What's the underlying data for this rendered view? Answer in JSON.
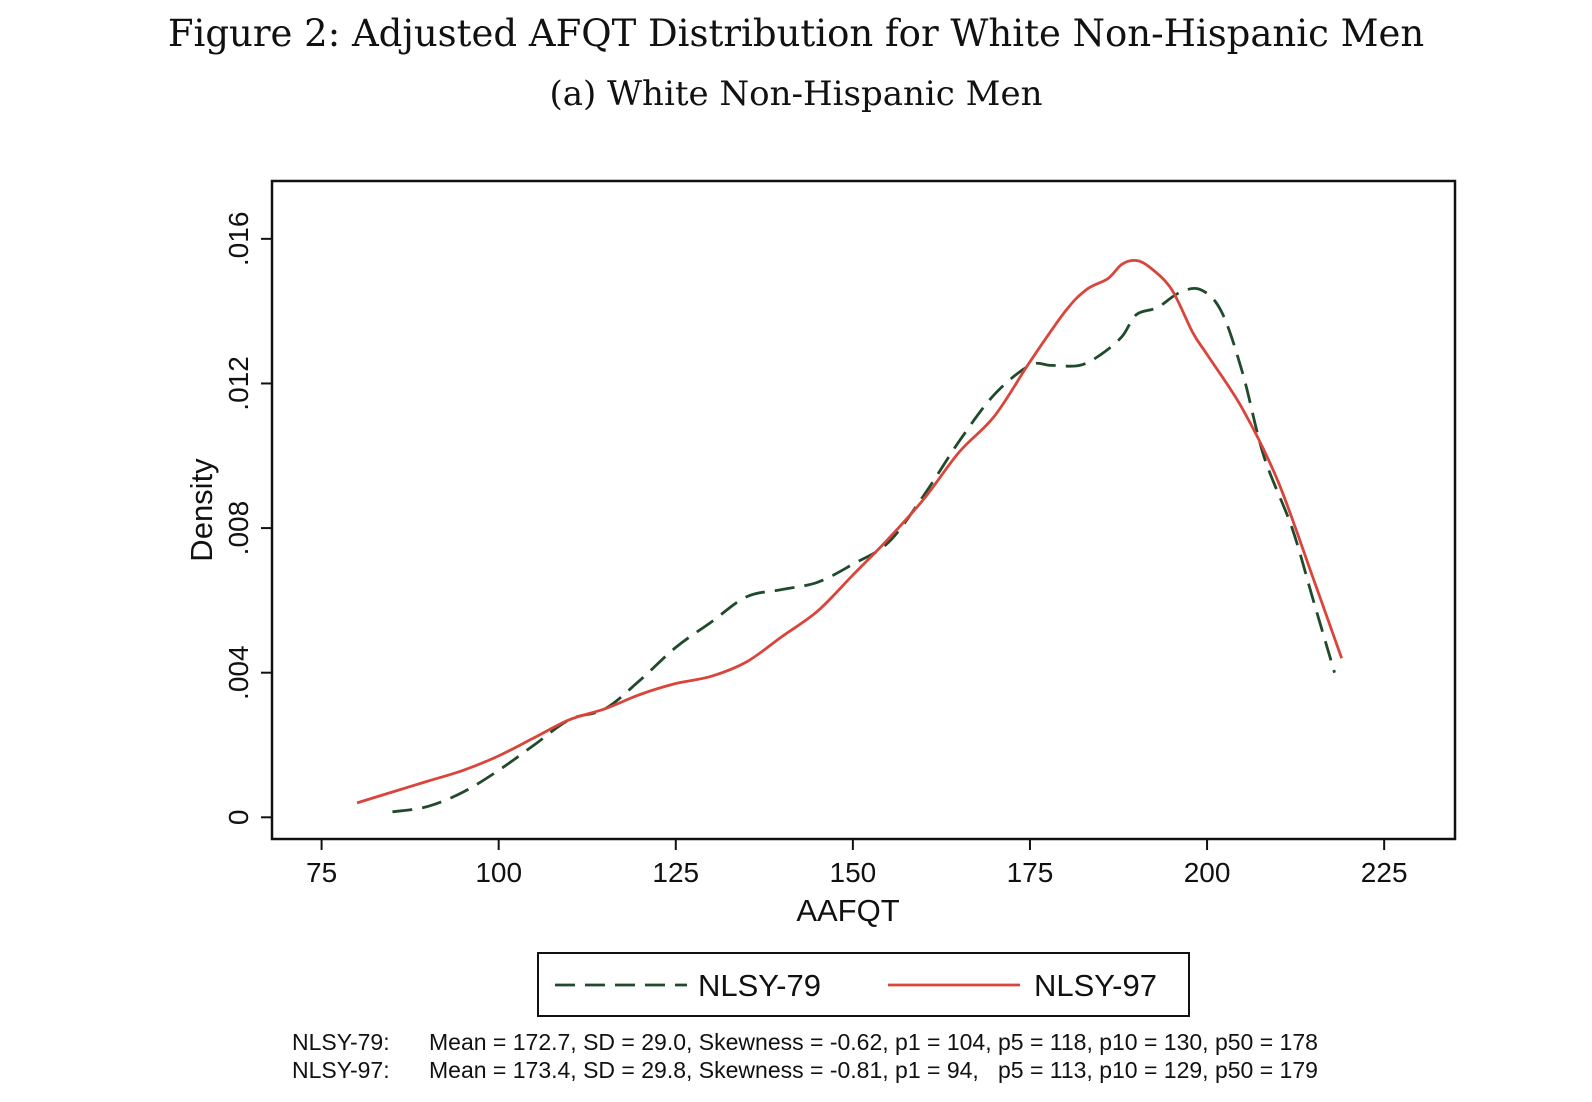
{
  "figure": {
    "title": "Figure 2: Adjusted AFQT Distribution for White Non-Hispanic Men",
    "subtitle": "(a) White Non-Hispanic Men"
  },
  "colors": {
    "nlsy79": "#1f4a2c",
    "nlsy97": "#d9453a",
    "axis": "#111111"
  },
  "chart_data": {
    "type": "line",
    "xlabel": "AAFQT",
    "ylabel": "Density",
    "xlim": [
      68,
      235
    ],
    "ylim": [
      -0.0006,
      0.0176
    ],
    "xticks": [
      75,
      100,
      125,
      150,
      175,
      200,
      225
    ],
    "xtick_labels": [
      "75",
      "100",
      "125",
      "150",
      "175",
      "200",
      "225"
    ],
    "yticks": [
      0,
      0.004,
      0.008,
      0.012,
      0.016
    ],
    "ytick_labels": [
      "0",
      ".004",
      ".008",
      ".012",
      ".016"
    ],
    "grid": false,
    "legend_position": "bottom",
    "series": [
      {
        "name": "NLSY-79",
        "style": "dashed",
        "x": [
          85,
          90,
          95,
          100,
          105,
          110,
          115,
          120,
          125,
          130,
          135,
          140,
          145,
          150,
          155,
          160,
          165,
          170,
          175,
          178,
          182,
          185,
          188,
          190,
          193,
          196,
          199,
          202,
          205,
          208,
          212,
          215,
          218
        ],
        "y": [
          0.00015,
          0.0003,
          0.0007,
          0.0013,
          0.002,
          0.0027,
          0.003,
          0.0038,
          0.0047,
          0.0054,
          0.0061,
          0.0063,
          0.0065,
          0.007,
          0.0076,
          0.0089,
          0.0104,
          0.0117,
          0.0125,
          0.0125,
          0.0125,
          0.0128,
          0.0133,
          0.0139,
          0.0141,
          0.0145,
          0.0146,
          0.014,
          0.0123,
          0.01,
          0.008,
          0.006,
          0.004
        ]
      },
      {
        "name": "NLSY-97",
        "style": "solid",
        "x": [
          80,
          85,
          90,
          95,
          100,
          105,
          110,
          115,
          120,
          125,
          130,
          135,
          140,
          145,
          150,
          155,
          160,
          165,
          170,
          175,
          180,
          183,
          186,
          188,
          190,
          192,
          195,
          198,
          200,
          205,
          210,
          215,
          219
        ],
        "y": [
          0.0004,
          0.0007,
          0.001,
          0.0013,
          0.0017,
          0.0022,
          0.0027,
          0.003,
          0.0034,
          0.0037,
          0.0039,
          0.0043,
          0.005,
          0.0057,
          0.0067,
          0.0077,
          0.0088,
          0.0101,
          0.0111,
          0.0126,
          0.014,
          0.0146,
          0.0149,
          0.0153,
          0.0154,
          0.0152,
          0.0146,
          0.0134,
          0.0128,
          0.0113,
          0.0093,
          0.0066,
          0.0044
        ]
      }
    ]
  },
  "stats": [
    {
      "label": "NLSY-79:",
      "text": "Mean = 172.7, SD = 29.0, Skewness = -0.62, p1 = 104, p5 = 118, p10 = 130, p50 = 178"
    },
    {
      "label": "NLSY-97:",
      "text": "Mean = 173.4, SD = 29.8, Skewness = -0.81, p1 = 94,   p5 = 113, p10 = 129, p50 = 179"
    }
  ]
}
